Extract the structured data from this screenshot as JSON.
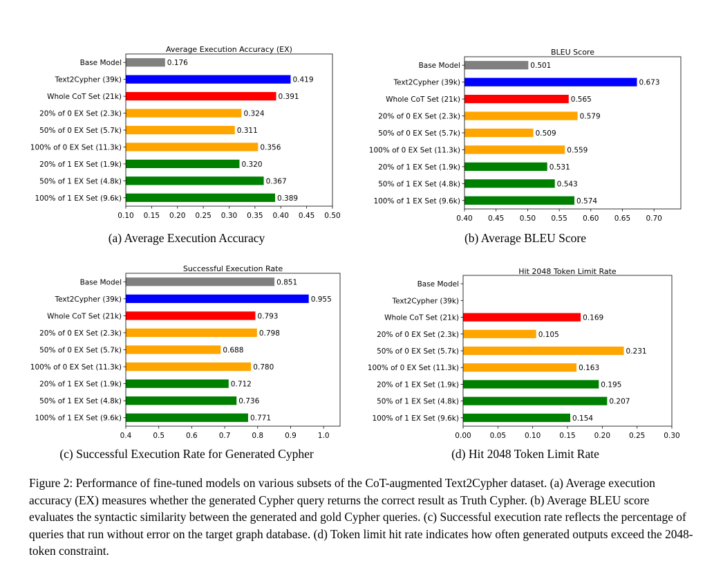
{
  "chart_data": [
    {
      "type": "bar",
      "orientation": "horizontal",
      "title": "Average Execution Accuracy (EX)",
      "caption": "(a) Average Execution Accuracy",
      "categories": [
        "Base Model",
        "Text2Cypher (39k)",
        "Whole CoT Set (21k)",
        "20% of 0 EX Set (2.3k)",
        "50% of 0 EX Set (5.7k)",
        "100% of 0 EX Set (11.3k)",
        "20% of 1 EX Set (1.9k)",
        "50% of 1 EX Set (4.8k)",
        "100% of 1 EX Set (9.6k)"
      ],
      "values": [
        0.176,
        0.419,
        0.391,
        0.324,
        0.311,
        0.356,
        0.32,
        0.367,
        0.389
      ],
      "value_labels": [
        "0.176",
        "0.419",
        "0.391",
        "0.324",
        "0.311",
        "0.356",
        "0.320",
        "0.367",
        "0.389"
      ],
      "colors": [
        "#808080",
        "#0000ff",
        "#ff0000",
        "#ffa500",
        "#ffa500",
        "#ffa500",
        "#008000",
        "#008000",
        "#008000"
      ],
      "xlim": [
        0.1,
        0.5
      ],
      "xticks": [
        0.1,
        0.15,
        0.2,
        0.25,
        0.3,
        0.35,
        0.4,
        0.45,
        0.5
      ],
      "xtick_labels": [
        "0.10",
        "0.15",
        "0.20",
        "0.25",
        "0.30",
        "0.35",
        "0.40",
        "0.45",
        "0.50"
      ],
      "grid": false
    },
    {
      "type": "bar",
      "orientation": "horizontal",
      "title": "BLEU Score",
      "caption": "(b) Average BLEU Score",
      "categories": [
        "Base Model",
        "Text2Cypher (39k)",
        "Whole CoT Set (21k)",
        "20% of 0 EX Set (2.3k)",
        "50% of 0 EX Set (5.7k)",
        "100% of 0 EX Set (11.3k)",
        "20% of 1 EX Set (1.9k)",
        "50% of 1 EX Set (4.8k)",
        "100% of 1 EX Set (9.6k)"
      ],
      "values": [
        0.501,
        0.673,
        0.565,
        0.579,
        0.509,
        0.559,
        0.531,
        0.543,
        0.574
      ],
      "value_labels": [
        "0.501",
        "0.673",
        "0.565",
        "0.579",
        "0.509",
        "0.559",
        "0.531",
        "0.543",
        "0.574"
      ],
      "colors": [
        "#808080",
        "#0000ff",
        "#ff0000",
        "#ffa500",
        "#ffa500",
        "#ffa500",
        "#008000",
        "#008000",
        "#008000"
      ],
      "xlim": [
        0.4,
        0.7425
      ],
      "xticks": [
        0.4,
        0.45,
        0.5,
        0.55,
        0.6,
        0.65,
        0.7
      ],
      "xtick_labels": [
        "0.40",
        "0.45",
        "0.50",
        "0.55",
        "0.60",
        "0.65",
        "0.70"
      ],
      "grid": false
    },
    {
      "type": "bar",
      "orientation": "horizontal",
      "title": "Successful Execution Rate",
      "caption": "(c) Successful Execution Rate for Generated Cypher",
      "categories": [
        "Base Model",
        "Text2Cypher (39k)",
        "Whole CoT Set (21k)",
        "20% of 0 EX Set (2.3k)",
        "50% of 0 EX Set (5.7k)",
        "100% of 0 EX Set (11.3k)",
        "20% of 1 EX Set (1.9k)",
        "50% of 1 EX Set (4.8k)",
        "100% of 1 EX Set (9.6k)"
      ],
      "values": [
        0.851,
        0.955,
        0.793,
        0.798,
        0.688,
        0.78,
        0.712,
        0.736,
        0.771
      ],
      "value_labels": [
        "0.851",
        "0.955",
        "0.793",
        "0.798",
        "0.688",
        "0.780",
        "0.712",
        "0.736",
        "0.771"
      ],
      "colors": [
        "#808080",
        "#0000ff",
        "#ff0000",
        "#ffa500",
        "#ffa500",
        "#ffa500",
        "#008000",
        "#008000",
        "#008000"
      ],
      "xlim": [
        0.4,
        1.05
      ],
      "xticks": [
        0.4,
        0.5,
        0.6,
        0.7,
        0.8,
        0.9,
        1.0
      ],
      "xtick_labels": [
        "0.4",
        "0.5",
        "0.6",
        "0.7",
        "0.8",
        "0.9",
        "1.0"
      ],
      "grid": false
    },
    {
      "type": "bar",
      "orientation": "horizontal",
      "title": "Hit 2048 Token Limit Rate",
      "caption": "(d) Hit 2048 Token Limit Rate",
      "categories": [
        "Base Model",
        "Text2Cypher (39k)",
        "Whole CoT Set (21k)",
        "20% of 0 EX Set (2.3k)",
        "50% of 0 EX Set (5.7k)",
        "100% of 0 EX Set (11.3k)",
        "20% of 1 EX Set (1.9k)",
        "50% of 1 EX Set (4.8k)",
        "100% of 1 EX Set (9.6k)"
      ],
      "values": [
        0,
        0,
        0.169,
        0.105,
        0.231,
        0.163,
        0.195,
        0.207,
        0.154
      ],
      "value_labels": [
        "",
        "",
        "0.169",
        "0.105",
        "0.231",
        "0.163",
        "0.195",
        "0.207",
        "0.154"
      ],
      "colors": [
        "#808080",
        "#0000ff",
        "#ff0000",
        "#ffa500",
        "#ffa500",
        "#ffa500",
        "#008000",
        "#008000",
        "#008000"
      ],
      "xlim": [
        0.0,
        0.3
      ],
      "xticks": [
        0.0,
        0.05,
        0.1,
        0.15,
        0.2,
        0.25,
        0.3
      ],
      "xtick_labels": [
        "0.00",
        "0.05",
        "0.10",
        "0.15",
        "0.20",
        "0.25",
        "0.30"
      ],
      "grid": false
    }
  ],
  "figure_caption": "Figure 2: Performance of fine-tuned models on various subsets of the CoT-augmented Text2Cypher dataset. (a) Average execution accuracy (EX) measures whether the generated Cypher query returns the correct result as Truth Cypher. (b) Average BLEU score evaluates the syntactic similarity between the generated and gold Cypher queries. (c) Successful execution rate reflects the percentage of queries that run without error on the target graph database. (d) Token limit hit rate indicates how often generated outputs exceed the 2048-token constraint."
}
